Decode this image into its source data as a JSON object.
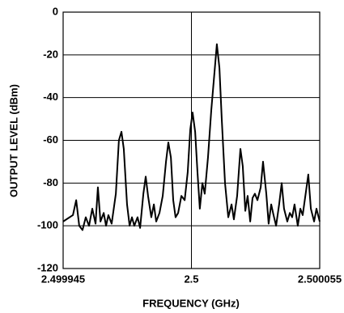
{
  "chart_data": {
    "type": "line",
    "x_label": "FREQUENCY (GHz)",
    "y_label": "OUTPUT LEVEL (dBm)",
    "xlim": [
      2.499945,
      2.500055
    ],
    "ylim": [
      -120,
      0
    ],
    "xticks": [
      2.499945,
      2.5,
      2.500055
    ],
    "yticks": [
      0,
      -20,
      -40,
      -60,
      -80,
      -100,
      -120
    ],
    "grid": true,
    "series": [
      {
        "color": "#000000",
        "x": [
          2.499945,
          2.4999492,
          2.4999506,
          2.4999519,
          2.4999533,
          2.4999547,
          2.4999561,
          2.4999575,
          2.4999589,
          2.4999599,
          2.499961,
          2.4999624,
          2.4999634,
          2.4999644,
          2.4999658,
          2.4999676,
          2.4999689,
          2.49997,
          2.499971,
          2.4999724,
          2.4999735,
          2.4999745,
          2.4999755,
          2.4999769,
          2.499978,
          2.4999794,
          2.4999804,
          2.4999814,
          2.4999828,
          2.4999839,
          2.4999849,
          2.4999863,
          2.4999877,
          2.4999891,
          2.4999901,
          2.4999912,
          2.4999922,
          2.4999932,
          2.4999943,
          2.4999957,
          2.4999971,
          2.4999984,
          2.4999995,
          2.5000005,
          2.5000016,
          2.5000026,
          2.5000036,
          2.5000047,
          2.5000057,
          2.5000071,
          2.5000085,
          2.5000099,
          2.5000109,
          2.500012,
          2.500013,
          2.5000144,
          2.5000158,
          2.5000172,
          2.5000182,
          2.5000196,
          2.500021,
          2.500022,
          2.5000231,
          2.5000241,
          2.5000252,
          2.5000262,
          2.5000272,
          2.5000283,
          2.5000297,
          2.5000307,
          2.5000321,
          2.5000331,
          2.5000342,
          2.5000352,
          2.5000363,
          2.5000376,
          2.5000387,
          2.5000397,
          2.5000411,
          2.5000422,
          2.5000432,
          2.5000442,
          2.5000456,
          2.5000467,
          2.5000477,
          2.5000491,
          2.5000501,
          2.5000512,
          2.5000526,
          2.5000536,
          2.500055
        ],
        "values": [
          -98,
          -95,
          -88,
          -100,
          -102,
          -96,
          -100,
          -92,
          -99,
          -82,
          -98,
          -94,
          -100,
          -95,
          -99,
          -85,
          -60,
          -56,
          -64,
          -90,
          -100,
          -96,
          -100,
          -96,
          -101,
          -85,
          -77,
          -86,
          -96,
          -90,
          -98,
          -94,
          -86,
          -70,
          -61,
          -68,
          -88,
          -96,
          -94,
          -86,
          -88,
          -75,
          -55,
          -47,
          -56,
          -75,
          -92,
          -80,
          -85,
          -68,
          -46,
          -28,
          -15,
          -26,
          -50,
          -80,
          -96,
          -90,
          -97,
          -86,
          -64,
          -72,
          -93,
          -86,
          -98,
          -87,
          -85,
          -88,
          -82,
          -70,
          -85,
          -99,
          -90,
          -95,
          -100,
          -90,
          -80,
          -92,
          -98,
          -94,
          -96,
          -90,
          -100,
          -92,
          -95,
          -84,
          -76,
          -92,
          -98,
          -92,
          -98
        ]
      }
    ]
  }
}
